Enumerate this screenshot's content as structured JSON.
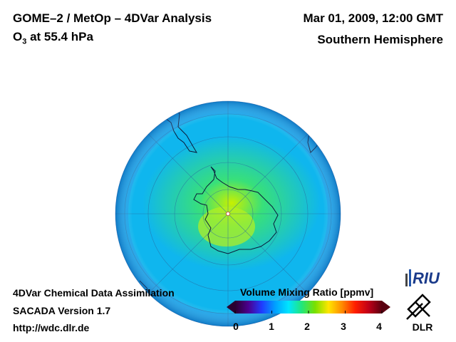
{
  "header": {
    "title": "GOME–2 / MetOp – 4DVar Analysis",
    "species": "O",
    "species_sub": "3",
    "pressure": " at 55.4 hPa",
    "datetime": "Mar 01, 2009, 12:00 GMT",
    "hemisphere": "Southern Hemisphere"
  },
  "footer": {
    "line1": "4DVar Chemical Data Assimilation",
    "line2": "SACADA Version 1.7",
    "url": "http://wdc.dlr.de"
  },
  "colorbar": {
    "title": "Volume Mixing Ratio [ppmv]",
    "ticks": [
      "0",
      "1",
      "2",
      "3",
      "4"
    ],
    "range": [
      0,
      4
    ],
    "stops": [
      "#2a0030",
      "#4b0090",
      "#1f3cff",
      "#00a0ff",
      "#00e5ff",
      "#22e67a",
      "#7ae000",
      "#ffe600",
      "#ff8c00",
      "#ff1e00",
      "#c00018",
      "#5a0010"
    ]
  },
  "map": {
    "projection": "orthographic",
    "center": "South Pole",
    "ocean_color": "#0fb6ee",
    "high_color": "#38e07a",
    "peak_color": "#c8f000"
  },
  "logos": {
    "riu": "RIU",
    "dlr": "DLR"
  }
}
